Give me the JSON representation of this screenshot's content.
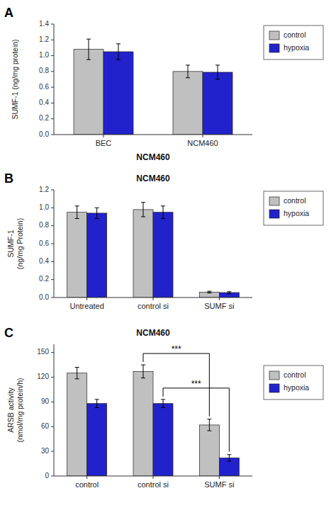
{
  "chart_data": [
    {
      "type": "bar",
      "ylabel": "SUMF-1 (ng/mg protein)",
      "categories": [
        "BEC",
        "NCM460"
      ],
      "series": [
        {
          "name": "control",
          "color": "#c0c0c0",
          "values": [
            1.08,
            0.8
          ],
          "errors": [
            0.13,
            0.08
          ]
        },
        {
          "name": "hypoxia",
          "color": "#2222cc",
          "values": [
            1.05,
            0.79
          ],
          "errors": [
            0.1,
            0.09
          ]
        }
      ],
      "ylim": [
        0,
        1.4
      ],
      "yticks": [
        {
          "value": 0,
          "label": "0.0"
        },
        0.2,
        0.4,
        0.6,
        0.8,
        {
          "value": 1.0,
          "label": "1.0"
        },
        1.2,
        1.4
      ],
      "grid": false,
      "legend": "right",
      "annotations": [
        {
          "text": "A"
        },
        {
          "text": "NCM460"
        }
      ]
    },
    {
      "type": "bar",
      "title": "NCM460",
      "ylabel": "SUMF-1\n(ng/mg Protein)",
      "categories": [
        "Untreated",
        "control si",
        "SUMF si"
      ],
      "series": [
        {
          "name": "control",
          "color": "#c0c0c0",
          "values": [
            0.95,
            0.98,
            0.06
          ],
          "errors": [
            0.07,
            0.08,
            0.01
          ]
        },
        {
          "name": "hypoxia",
          "color": "#2222cc",
          "values": [
            0.94,
            0.95,
            0.055
          ],
          "errors": [
            0.06,
            0.07,
            0.01
          ]
        }
      ],
      "ylim": [
        0,
        1.2
      ],
      "yticks": [
        {
          "value": 0,
          "label": "0.0"
        },
        0.2,
        0.4,
        0.6,
        0.8,
        {
          "value": 1.0,
          "label": "1.0"
        },
        1.2
      ],
      "grid": false,
      "legend": "right",
      "annotations": [
        {
          "text": "B"
        }
      ]
    },
    {
      "type": "bar",
      "title": "NCM460",
      "ylabel": "ARSB activity\n(nmol/mg protein/h)",
      "categories": [
        "control",
        "control si",
        "SUMF si"
      ],
      "series": [
        {
          "name": "control",
          "color": "#c0c0c0",
          "values": [
            125,
            127,
            62
          ],
          "errors": [
            7,
            8,
            7
          ]
        },
        {
          "name": "hypoxia",
          "color": "#2222cc",
          "values": [
            88,
            88,
            22
          ],
          "errors": [
            5,
            5,
            4
          ]
        }
      ],
      "ylim": [
        0,
        160
      ],
      "yticks": [
        0,
        30,
        60,
        90,
        120,
        150
      ],
      "grid": false,
      "legend": "right",
      "annotations": [
        {
          "text": "C"
        },
        {
          "text": "***",
          "from": "control si",
          "to": "SUMF si",
          "series": "control"
        },
        {
          "text": "***",
          "from": "control si",
          "to": "SUMF si",
          "series": "hypoxia"
        }
      ]
    }
  ]
}
